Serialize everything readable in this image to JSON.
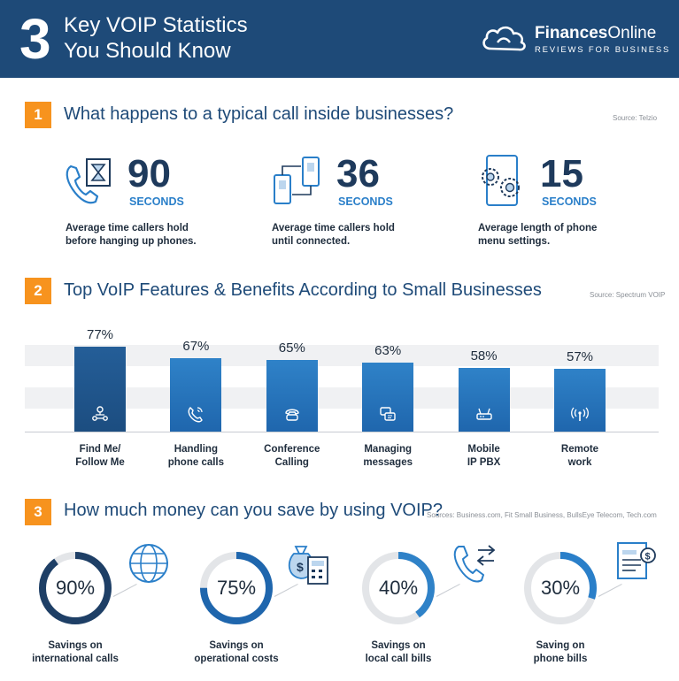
{
  "header": {
    "number": "3",
    "title_line1": "Key VOIP Statistics",
    "title_line2": "You Should Know",
    "logo_name_bold": "Finances",
    "logo_name_light": "Online",
    "logo_tagline": "REVIEWS FOR BUSINESS",
    "logo_icon": "cloud-logo-icon"
  },
  "colors": {
    "header_bg": "#1e4a78",
    "accent": "#f7931e",
    "primary": "#2a7fc9",
    "dark_bar": "#1c4d80",
    "donut_track": "#e3e5e8"
  },
  "section1": {
    "number": "1",
    "title": "What happens to a typical call inside businesses?",
    "source": "Source: Telzio",
    "stats": [
      {
        "icon": "phone-hourglass-icon",
        "value": "90",
        "unit": "SECONDS",
        "desc_line1": "Average time callers hold",
        "desc_line2": "before hanging up phones."
      },
      {
        "icon": "phone-transfer-icon",
        "value": "36",
        "unit": "SECONDS",
        "desc_line1": "Average time callers hold",
        "desc_line2": "until connected."
      },
      {
        "icon": "phone-settings-icon",
        "value": "15",
        "unit": "SECONDS",
        "desc_line1": "Average length of phone",
        "desc_line2": "menu settings."
      }
    ]
  },
  "section2": {
    "number": "2",
    "title": "Top VoIP Features & Benefits According to Small Businesses",
    "source": "Source: Spectrum VOIP"
  },
  "section3": {
    "number": "3",
    "title": "How much money can you save by using VOIP?",
    "source": "Sources: Business.com, Fit Small Business, BullsEye Telecom, Tech.com",
    "items": [
      {
        "value": 90,
        "value_label": "90%",
        "color": "#1e3f66",
        "icon": "globe-icon",
        "label_line1": "Savings on",
        "label_line2": "international calls"
      },
      {
        "value": 75,
        "value_label": "75%",
        "color": "#1f66ad",
        "icon": "money-calculator-icon",
        "label_line1": "Savings on",
        "label_line2": "operational costs"
      },
      {
        "value": 40,
        "value_label": "40%",
        "color": "#2f82c8",
        "icon": "phone-arrows-icon",
        "label_line1": "Savings on",
        "label_line2": "local call bills"
      },
      {
        "value": 30,
        "value_label": "30%",
        "color": "#2a7fc9",
        "icon": "bill-icon",
        "label_line1": "Saving on",
        "label_line2": "phone bills"
      }
    ]
  },
  "chart_data": [
    {
      "type": "bar",
      "categories": [
        "Find Me/ Follow Me",
        "Handling phone calls",
        "Conference Calling",
        "Managing messages",
        "Mobile IP PBX",
        "Remote work"
      ],
      "category_lines": [
        [
          "Find Me/",
          "Follow Me"
        ],
        [
          "Handling",
          "phone calls"
        ],
        [
          "Conference",
          "Calling"
        ],
        [
          "Managing",
          "messages"
        ],
        [
          "Mobile",
          "IP PBX"
        ],
        [
          "Remote",
          "work"
        ]
      ],
      "values": [
        77,
        67,
        65,
        63,
        58,
        57
      ],
      "value_labels": [
        "77%",
        "67%",
        "65%",
        "63%",
        "58%",
        "57%"
      ],
      "icons": [
        "people-network-icon",
        "phone-ringing-icon",
        "conference-phone-icon",
        "message-bubbles-icon",
        "router-icon",
        "wireless-signal-icon"
      ],
      "title": "Top VoIP Features & Benefits According to Small Businesses",
      "xlabel": "",
      "ylabel": "",
      "ylim": [
        0,
        100
      ],
      "grid": false
    },
    {
      "type": "pie",
      "categories": [
        "Savings on international calls",
        "Savings on operational costs",
        "Savings on local call bills",
        "Saving on phone bills"
      ],
      "values": [
        90,
        75,
        40,
        30
      ],
      "title": "How much money can you save by using VOIP?"
    }
  ]
}
